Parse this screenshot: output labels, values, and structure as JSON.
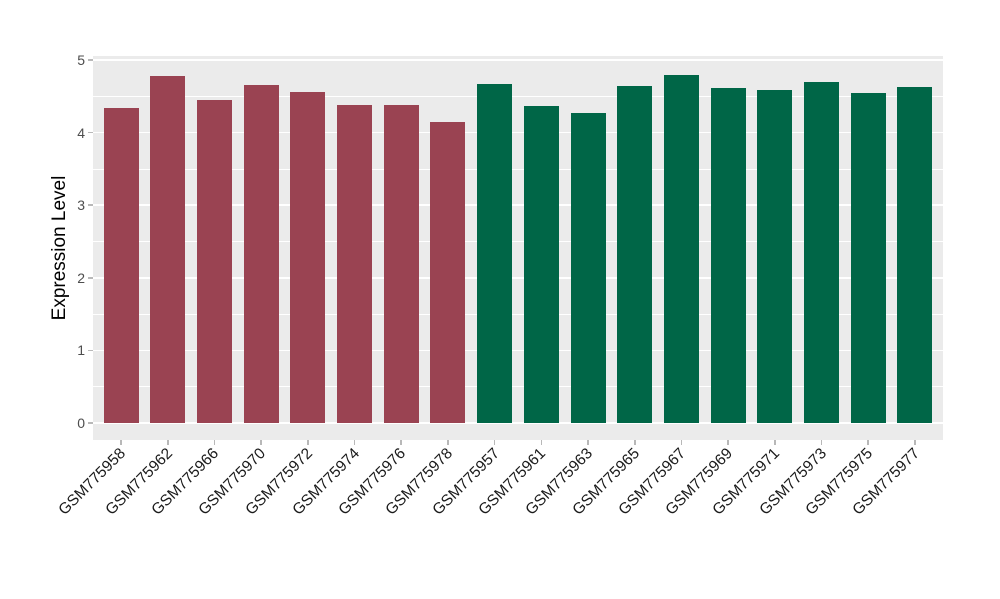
{
  "chart_data": {
    "type": "bar",
    "title": "",
    "xlabel": "",
    "ylabel": "Expression Level",
    "ylim": [
      0,
      5
    ],
    "yticks": [
      0,
      1,
      2,
      3,
      4,
      5
    ],
    "grid": "on",
    "legend": "none",
    "categories": [
      "GSM775958",
      "GSM775962",
      "GSM775966",
      "GSM775970",
      "GSM775972",
      "GSM775974",
      "GSM775976",
      "GSM775978",
      "GSM775957",
      "GSM775961",
      "GSM775963",
      "GSM775965",
      "GSM775967",
      "GSM775969",
      "GSM775971",
      "GSM775973",
      "GSM775975",
      "GSM775977"
    ],
    "values": [
      4.34,
      4.78,
      4.45,
      4.66,
      4.56,
      4.38,
      4.38,
      4.15,
      4.67,
      4.37,
      4.27,
      4.64,
      4.79,
      4.62,
      4.59,
      4.7,
      4.55,
      4.63
    ],
    "bar_colors": [
      "#9A4352",
      "#9A4352",
      "#9A4352",
      "#9A4352",
      "#9A4352",
      "#9A4352",
      "#9A4352",
      "#9A4352",
      "#006647",
      "#006647",
      "#006647",
      "#006647",
      "#006647",
      "#006647",
      "#006647",
      "#006647",
      "#006647",
      "#006647"
    ],
    "panel_bg": "#EBEBEB",
    "grid_color": "#FFFFFF"
  }
}
